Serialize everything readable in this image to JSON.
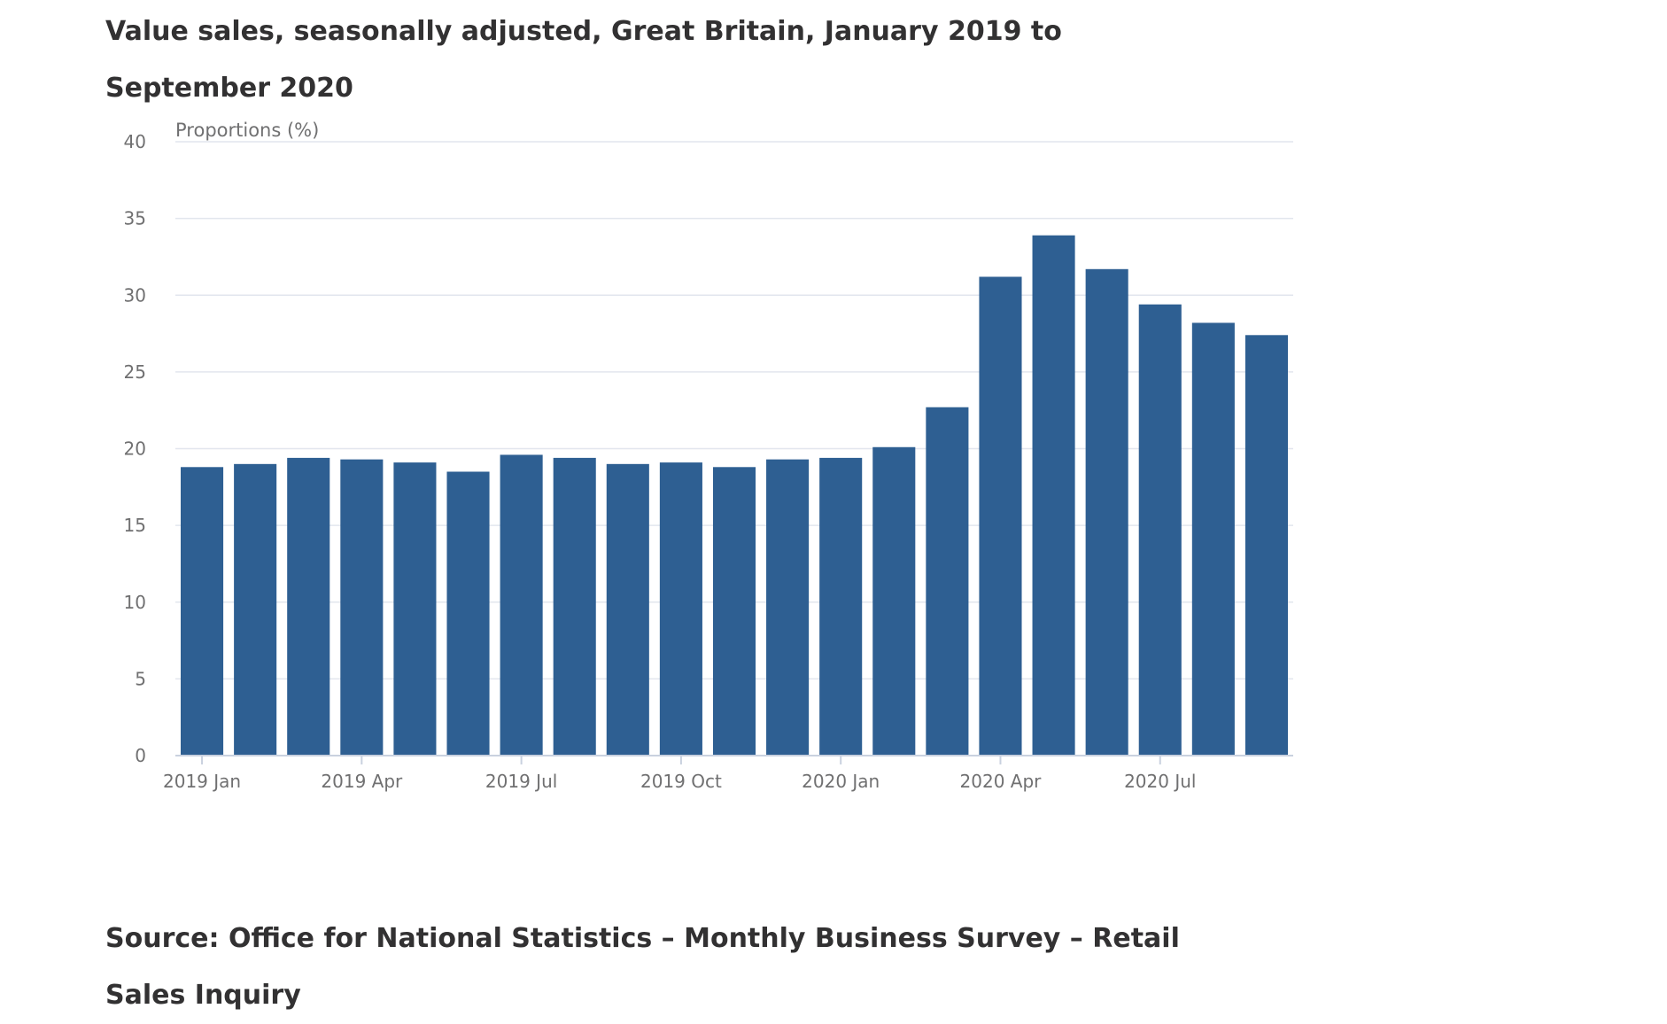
{
  "title": "Value sales, seasonally adjusted, Great Britain, January 2019 to September 2020",
  "source": "Source: Office for National Statistics – Monthly Business Survey – Retail Sales Inquiry",
  "chart_data": {
    "type": "bar",
    "title": "Value sales, seasonally adjusted, Great Britain, January 2019 to September 2020",
    "ylabel": "Proportions (%)",
    "xlabel": "",
    "ylim": [
      0,
      40
    ],
    "yticks": [
      0,
      5,
      10,
      15,
      20,
      25,
      30,
      35,
      40
    ],
    "grid": true,
    "legend": "none",
    "bar_color": "#2e5f92",
    "categories": [
      "2019 Jan",
      "2019 Feb",
      "2019 Mar",
      "2019 Apr",
      "2019 May",
      "2019 Jun",
      "2019 Jul",
      "2019 Aug",
      "2019 Sep",
      "2019 Oct",
      "2019 Nov",
      "2019 Dec",
      "2020 Jan",
      "2020 Feb",
      "2020 Mar",
      "2020 Apr",
      "2020 May",
      "2020 Jun",
      "2020 Jul",
      "2020 Aug",
      "2020 Sep"
    ],
    "tick_labels": [
      "2019 Jan",
      "2019 Apr",
      "2019 Jul",
      "2019 Oct",
      "2020 Jan",
      "2020 Apr",
      "2020 Jul"
    ],
    "values": [
      18.8,
      19.0,
      19.4,
      19.3,
      19.1,
      18.5,
      19.6,
      19.4,
      19.0,
      19.1,
      18.8,
      19.3,
      19.4,
      20.1,
      22.7,
      31.2,
      33.9,
      31.7,
      29.4,
      28.2,
      27.4
    ]
  }
}
